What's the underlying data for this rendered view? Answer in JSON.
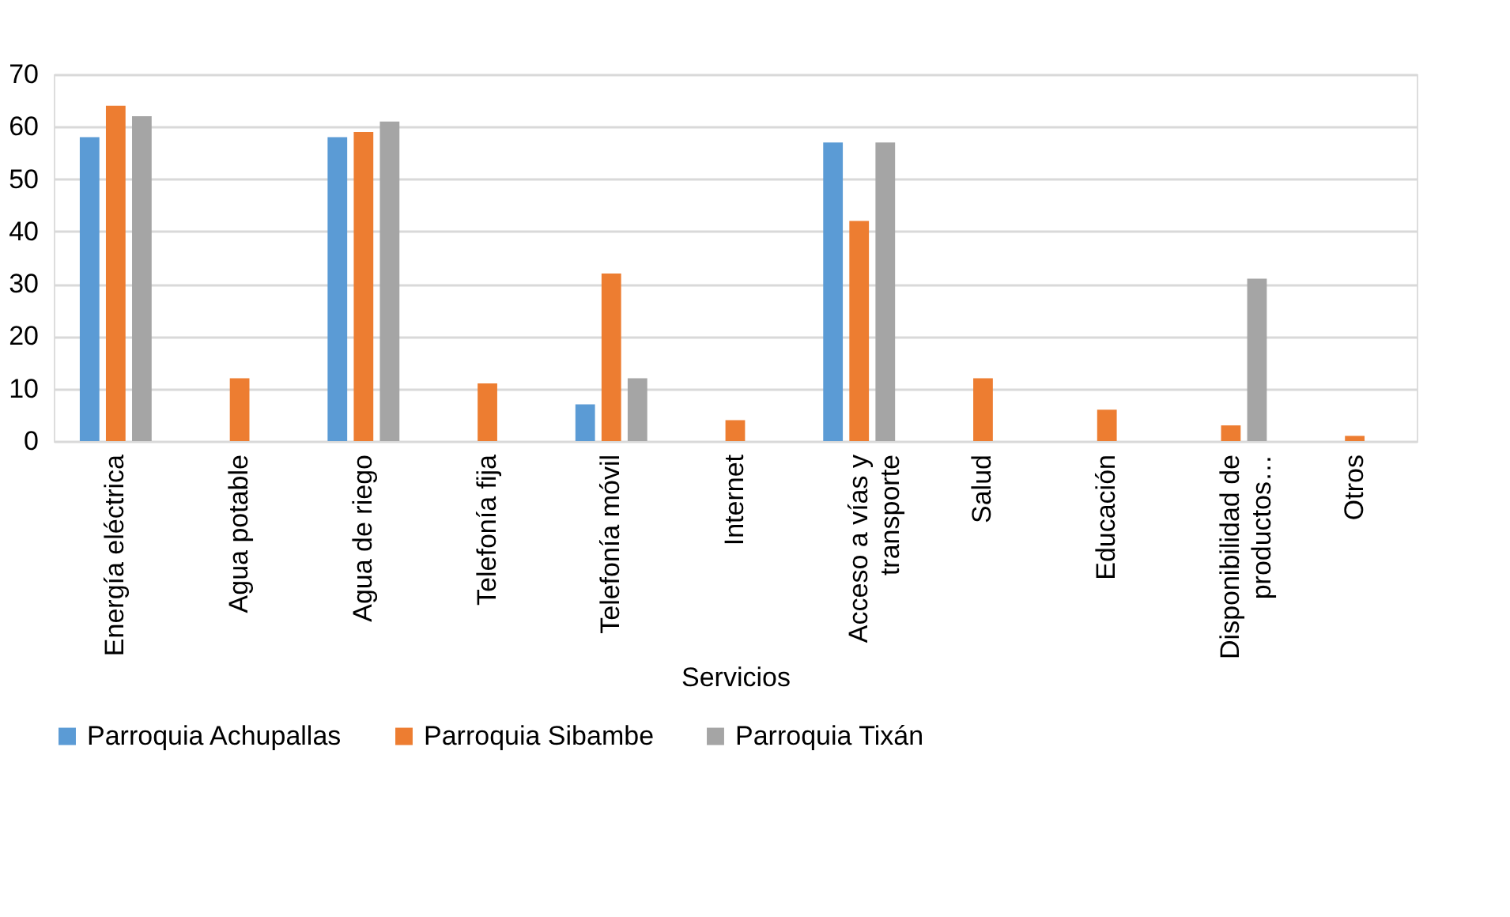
{
  "chart_data": {
    "type": "bar",
    "xlabel": "Servicios",
    "categories": [
      "Energía eléctrica",
      "Agua potable",
      "Agua de riego",
      "Telefonía fija",
      "Telefonía móvil",
      "Internet",
      "Acceso a vías y\ntransporte",
      "Salud",
      "Educación",
      "Disponibilidad de\nproductos…",
      "Otros"
    ],
    "series": [
      {
        "name": "Parroquia Achupallas",
        "color": "#5b9bd5",
        "values": [
          58,
          null,
          58,
          null,
          7,
          null,
          57,
          null,
          null,
          null,
          null
        ]
      },
      {
        "name": "Parroquia Sibambe",
        "color": "#ed7d31",
        "values": [
          64,
          12,
          59,
          11,
          32,
          4,
          42,
          12,
          6,
          3,
          1
        ]
      },
      {
        "name": "Parroquia Tixán",
        "color": "#a5a5a5",
        "values": [
          62,
          null,
          61,
          null,
          12,
          null,
          57,
          null,
          null,
          31,
          null
        ]
      }
    ],
    "ylim": [
      0,
      70
    ],
    "yticks": [
      0,
      10,
      20,
      30,
      40,
      50,
      60,
      70
    ],
    "grid": "y",
    "legend": "bottom"
  }
}
